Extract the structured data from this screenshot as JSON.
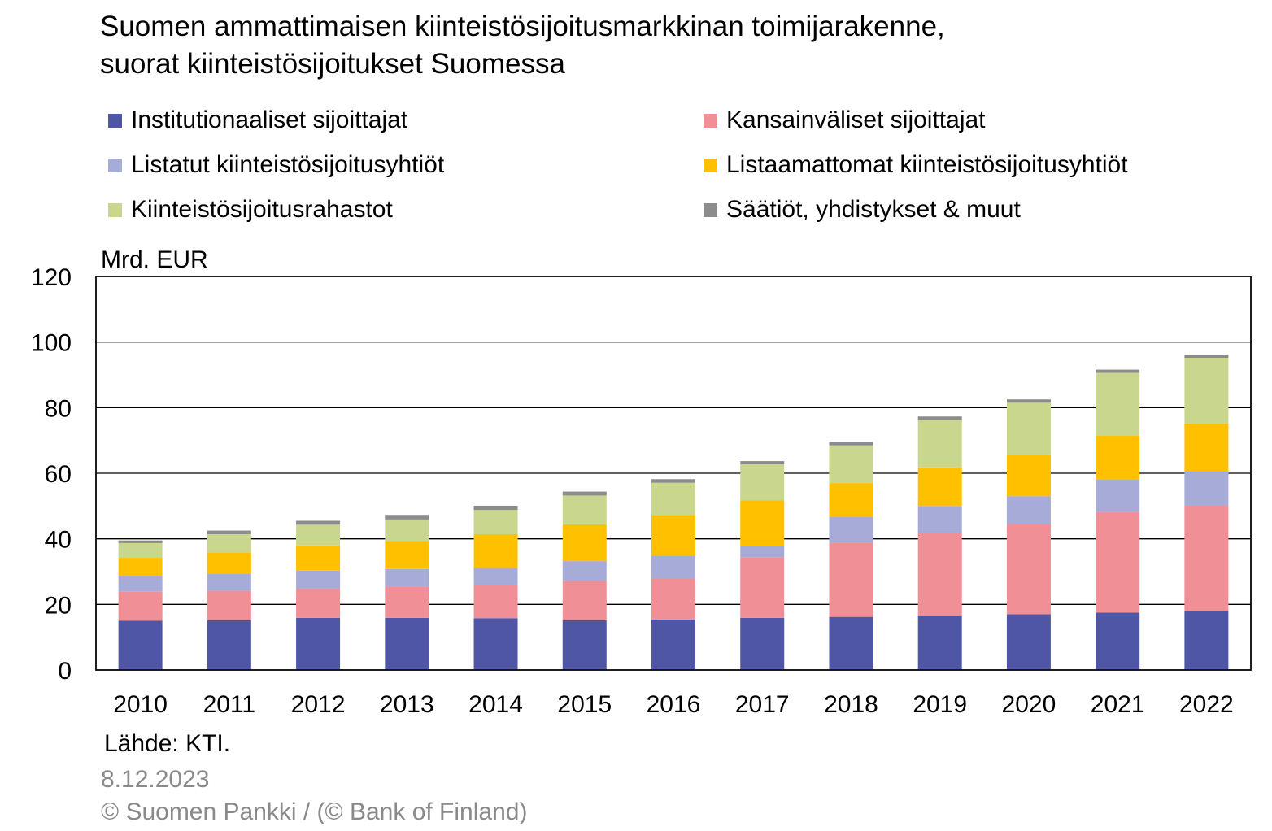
{
  "chart_data": {
    "type": "bar",
    "stacked": true,
    "title_lines": [
      "Suomen ammattimaisen kiinteistösijoitusmarkkinan toimijarakenne,",
      "suorat kiinteistösijoitukset Suomessa"
    ],
    "ylabel": "Mrd. EUR",
    "ylim": [
      0,
      120
    ],
    "yticks": [
      0,
      20,
      40,
      60,
      80,
      100,
      120
    ],
    "grid": true,
    "legend_position": "top",
    "categories": [
      "2010",
      "2011",
      "2012",
      "2013",
      "2014",
      "2015",
      "2016",
      "2017",
      "2018",
      "2019",
      "2020",
      "2021",
      "2022"
    ],
    "series": [
      {
        "name": "Institutionaaliset sijoittajat",
        "color": "#4F56A5",
        "values": [
          15,
          15.2,
          15.9,
          15.9,
          15.8,
          15.2,
          15.4,
          15.9,
          16.2,
          16.5,
          17,
          17.5,
          18
        ]
      },
      {
        "name": "Kansainväliset sijoittajat",
        "color": "#F18F96",
        "values": [
          9,
          9,
          9,
          9.4,
          10,
          12,
          12.5,
          18.5,
          22.5,
          25.2,
          27.5,
          30.7,
          32.2
        ]
      },
      {
        "name": "Listatut kiinteistösijoitusyhtiöt",
        "color": "#A7ABD8",
        "values": [
          4.7,
          5.2,
          5.4,
          5.5,
          5.3,
          6,
          7,
          3.3,
          8,
          8.3,
          8.5,
          10,
          10.5
        ]
      },
      {
        "name": "Listaamattomat kiinteistösijoitusyhtiöt",
        "color": "#FFC000",
        "values": [
          5.5,
          6.5,
          7.7,
          8.5,
          10.3,
          11.2,
          12.4,
          14,
          10.3,
          11.8,
          12.5,
          13.2,
          14.5
        ]
      },
      {
        "name": "Kiinteistösijoitusrahastot",
        "color": "#C8D68E",
        "values": [
          4.5,
          5.5,
          6.3,
          6.6,
          7.4,
          8.8,
          9.8,
          11,
          11.5,
          14.5,
          16,
          19.2,
          20
        ]
      },
      {
        "name": "Säätiöt, yhdistykset & muut",
        "color": "#8C8C8C",
        "values": [
          0.8,
          1.1,
          1.2,
          1.4,
          1.3,
          1.2,
          1.1,
          1,
          1,
          1,
          1,
          1,
          1
        ]
      }
    ]
  },
  "footer": {
    "source": "Lähde: KTI.",
    "date": "8.12.2023",
    "copyright": "© Suomen Pankki / (© Bank of Finland)"
  }
}
